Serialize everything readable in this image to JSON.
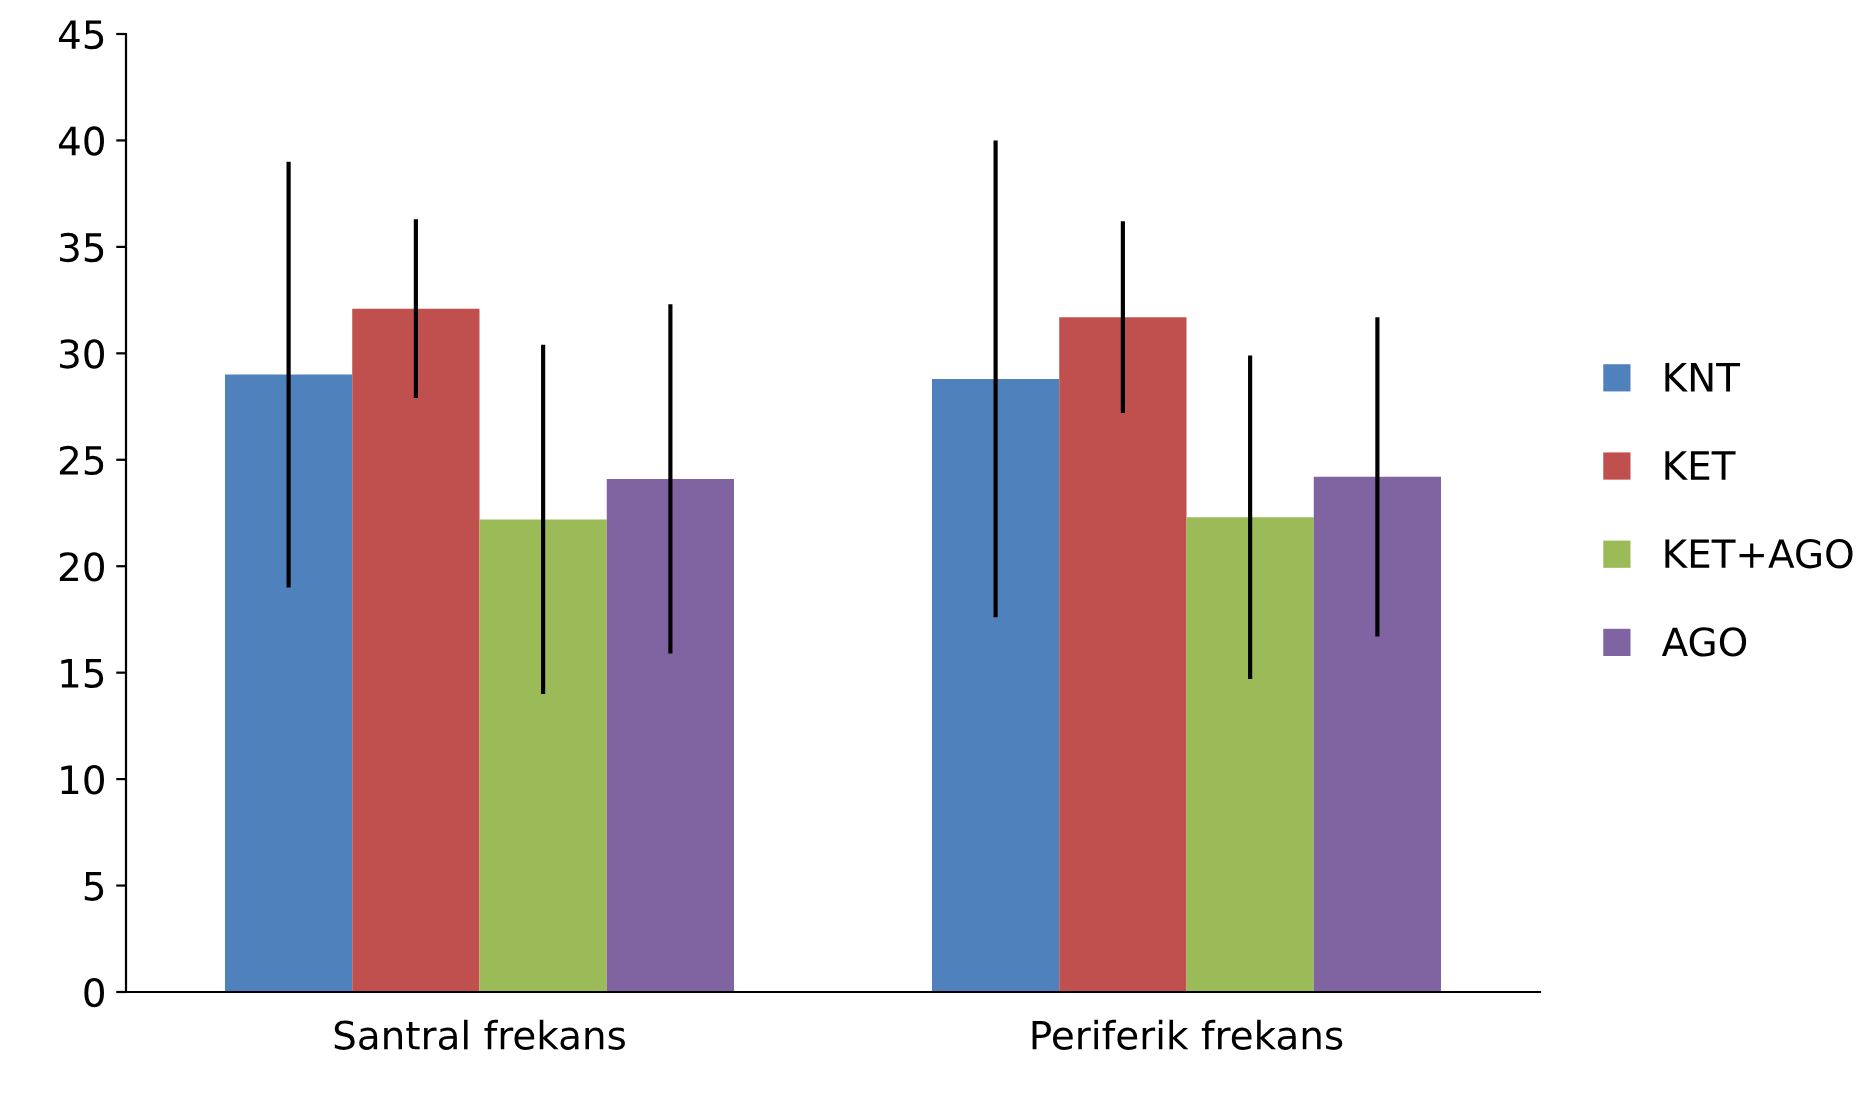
{
  "chart_data": {
    "type": "bar",
    "categories": [
      "Santral frekans",
      "Periferik frekans"
    ],
    "series": [
      {
        "name": "KNT",
        "color": "#4f81bd",
        "values": [
          29.0,
          28.8
        ],
        "errors": [
          10.0,
          11.2
        ]
      },
      {
        "name": "KET",
        "color": "#c0504d",
        "values": [
          32.1,
          31.7
        ],
        "errors": [
          4.2,
          4.5
        ]
      },
      {
        "name": "KET+AGO",
        "color": "#9bbb59",
        "values": [
          22.2,
          22.3
        ],
        "errors": [
          8.2,
          7.6
        ]
      },
      {
        "name": "AGO",
        "color": "#8064a2",
        "values": [
          24.1,
          24.2
        ],
        "errors": [
          8.2,
          7.5
        ]
      }
    ],
    "ylim": [
      0,
      45
    ],
    "yticks": [
      0,
      5,
      10,
      15,
      20,
      25,
      30,
      35,
      40,
      45
    ],
    "grid": false,
    "legend": "right"
  }
}
